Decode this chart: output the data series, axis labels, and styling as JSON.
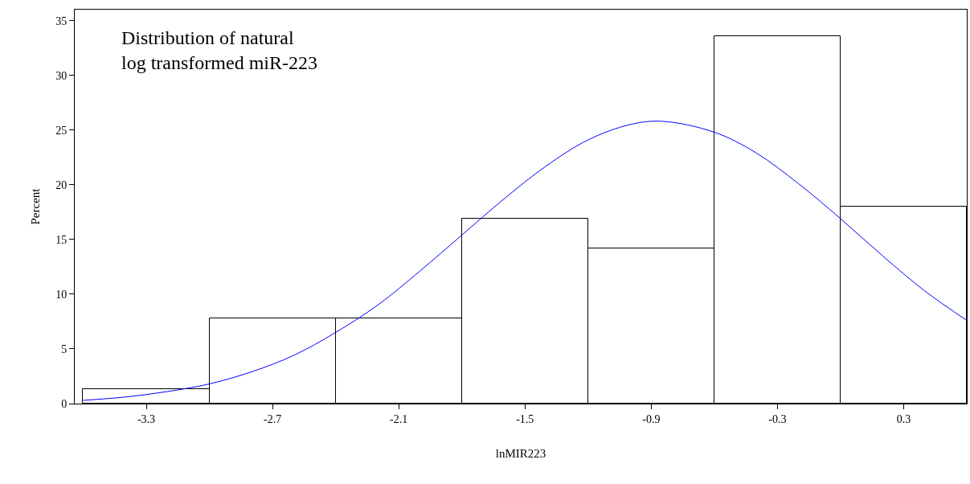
{
  "chart_data": {
    "type": "histogram",
    "xlabel": "lnMIR223",
    "ylabel": "Percent",
    "annotations": [
      "Distribution of natural\nlog transformed miR-223"
    ],
    "bins": [
      -3.6,
      -3.0,
      -2.4,
      -1.8,
      -1.2,
      -0.6,
      0.0,
      0.6
    ],
    "values": [
      1.3,
      7.8,
      7.8,
      16.9,
      14.2,
      33.6,
      18.0
    ],
    "color": "#ffffff",
    "series": [
      {
        "type": "line",
        "color": "#0000ff",
        "x": [
          -3.6,
          -3.4,
          -3.2,
          -3.0,
          -2.8,
          -2.6,
          -2.4,
          -2.2,
          -2.0,
          -1.8,
          -1.6,
          -1.4,
          -1.2,
          -1.0,
          -0.85,
          -0.6,
          -0.4,
          -0.2,
          0.0,
          0.2,
          0.4,
          0.6
        ],
        "values": [
          0.3,
          0.6,
          1.1,
          1.8,
          2.9,
          4.4,
          6.5,
          9.0,
          12.1,
          15.4,
          18.7,
          21.7,
          24.1,
          25.5,
          25.8,
          24.8,
          22.9,
          20.1,
          16.9,
          13.5,
          10.3,
          7.6
        ]
      }
    ],
    "xlim": [
      -3.64,
      0.6
    ],
    "xticks": [
      -3.3,
      -2.7,
      -2.1,
      -1.5,
      -0.9,
      -0.3,
      0.3
    ],
    "ylim": [
      0,
      36
    ],
    "yticks": [
      0,
      5,
      10,
      15,
      20,
      25,
      30,
      35
    ]
  }
}
